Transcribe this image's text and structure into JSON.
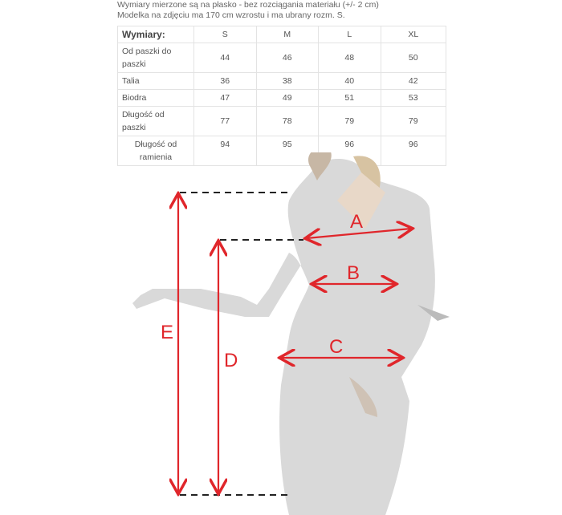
{
  "notes": [
    "Wymiary mierzone są na płasko - bez rozciągania materiału (+/- 2 cm)",
    "Modelka na zdjęciu ma 170 cm wzrostu i ma ubrany rozm. S."
  ],
  "table": {
    "header": [
      "Wymiary:",
      "S",
      "M",
      "L",
      "XL"
    ],
    "rows": [
      {
        "label": "Od paszki do paszki",
        "values": [
          "44",
          "46",
          "48",
          "50"
        ]
      },
      {
        "label": "Talia",
        "values": [
          "36",
          "38",
          "40",
          "42"
        ]
      },
      {
        "label": "Biodra",
        "values": [
          "47",
          "49",
          "51",
          "53"
        ]
      },
      {
        "label": "Długość od paszki",
        "values": [
          "77",
          "78",
          "79",
          "79"
        ]
      },
      {
        "label": "Długość od ramienia",
        "values": [
          "94",
          "95",
          "96",
          "96"
        ]
      }
    ]
  },
  "figure": {
    "labels": {
      "A": "A",
      "B": "B",
      "C": "C",
      "D": "D",
      "E": "E"
    },
    "line_color": "#e0262b",
    "dress_color": "#d9d9d9"
  }
}
